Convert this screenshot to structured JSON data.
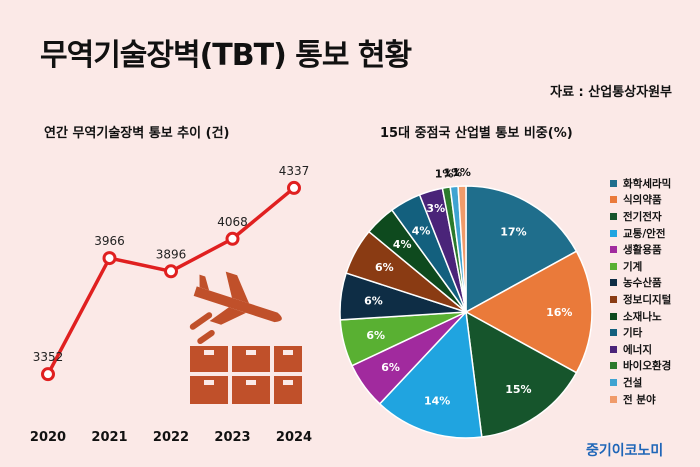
{
  "header": {
    "title": "무역기술장벽(TBT) 통보 현황",
    "source": "자료 : 산업통상자원부"
  },
  "charts": [
    {
      "type": "line",
      "title": "연간 무역기술장벽 통보 추이 (건)",
      "color": "#e02020",
      "x": [
        "2020",
        "2021",
        "2022",
        "2023",
        "2024"
      ],
      "values": [
        3352,
        3966,
        3896,
        4068,
        4337
      ],
      "icon": "plane-and-boxes-icon"
    },
    {
      "type": "pie",
      "title": "15대 중점국 산업별 통보 비중(%)",
      "slices": [
        {
          "label": "화학세라믹",
          "value": 17,
          "text": "17%",
          "color": "#1f6e8c"
        },
        {
          "label": "식의약품",
          "value": 16,
          "text": "16%",
          "color": "#ea7a3a"
        },
        {
          "label": "전기전자",
          "value": 15,
          "text": "15%",
          "color": "#16552c"
        },
        {
          "label": "교통/안전",
          "value": 14,
          "text": "14%",
          "color": "#20a4e0"
        },
        {
          "label": "생활용품",
          "value": 6,
          "text": "6%",
          "color": "#a12a9e"
        },
        {
          "label": "기계",
          "value": 6,
          "text": "6%",
          "color": "#59b032"
        },
        {
          "label": "농수산품",
          "value": 6,
          "text": "6%",
          "color": "#0e2d45"
        },
        {
          "label": "정보디지털",
          "value": 6,
          "text": "6%",
          "color": "#8a3b13"
        },
        {
          "label": "소재나노",
          "value": 4,
          "text": "4%",
          "color": "#0e4a1e"
        },
        {
          "label": "기타",
          "value": 4,
          "text": "4%",
          "color": "#13607e"
        },
        {
          "label": "에너지",
          "value": 3,
          "text": "3%",
          "color": "#4a2479"
        },
        {
          "label": "바이오환경",
          "value": 1,
          "text": "1%",
          "color": "#2b7a2c"
        },
        {
          "label": "건설",
          "value": 1,
          "text": "1%",
          "color": "#3fa3d1"
        },
        {
          "label": "전 분야",
          "value": 1,
          "text": "1%",
          "color": "#f09b6a"
        }
      ]
    }
  ],
  "brand": "중기이코노미"
}
